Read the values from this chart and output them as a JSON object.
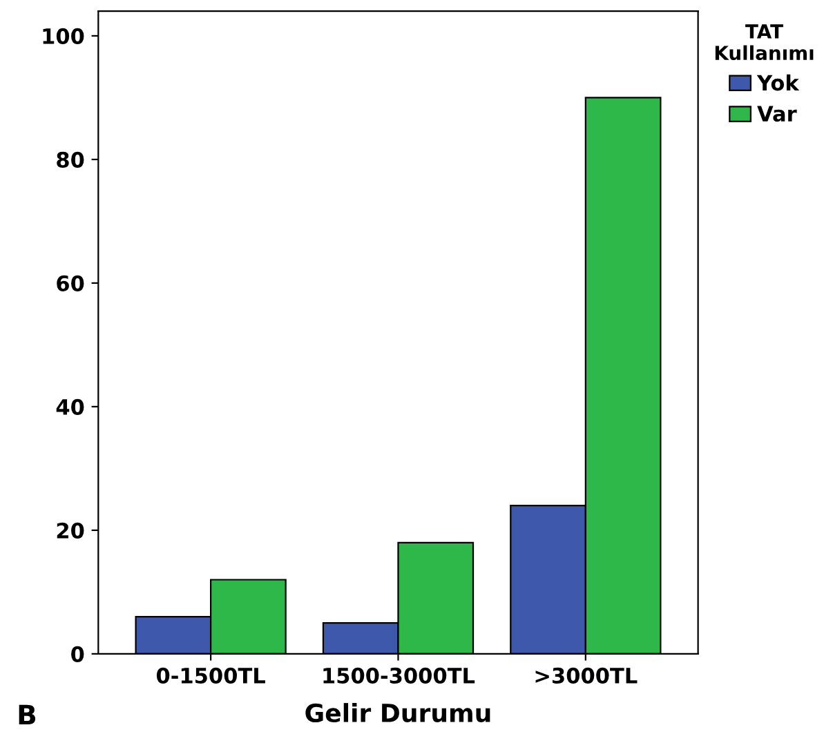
{
  "chart_data": {
    "type": "bar",
    "categories": [
      "0-1500TL",
      "1500-3000TL",
      ">3000TL"
    ],
    "series": [
      {
        "name": "Yok",
        "color": "#3e58ac",
        "values": [
          6,
          5,
          24
        ]
      },
      {
        "name": "Var",
        "color": "#2fb84a",
        "values": [
          12,
          18,
          90
        ]
      }
    ],
    "xlabel": "Gelir Durumu",
    "legend_title": "TAT\nKullanımı",
    "legend": "top right",
    "ylim": [
      0,
      104
    ],
    "yticks": [
      0,
      20,
      40,
      60,
      80,
      100
    ],
    "grid": false,
    "annotations": [
      "B"
    ]
  }
}
